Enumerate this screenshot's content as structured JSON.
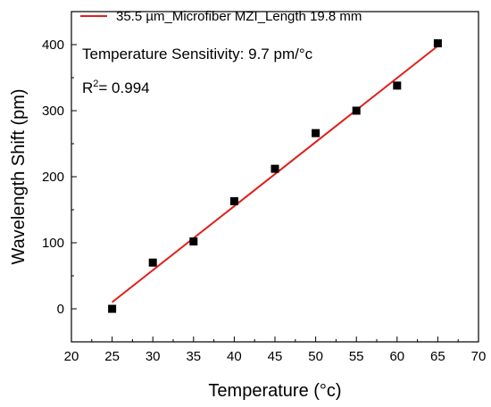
{
  "chart_data": {
    "type": "scatter",
    "xlabel": "Temperature (°c)",
    "ylabel": "Wavelength Shift (pm)",
    "xlim": [
      20,
      70
    ],
    "ylim": [
      -50,
      450
    ],
    "xticks": [
      20,
      25,
      30,
      35,
      40,
      45,
      50,
      55,
      60,
      65,
      70
    ],
    "yticks": [
      0,
      100,
      200,
      300,
      400
    ],
    "grid": false,
    "legend_position": "top-left",
    "series": [
      {
        "name": "35.5 µm_Microfiber MZI_Length 19.8 mm",
        "kind": "points",
        "marker": "square",
        "color": "#000000",
        "x": [
          25,
          30,
          35,
          40,
          45,
          50,
          55,
          60,
          65
        ],
        "y": [
          0,
          70,
          102,
          163,
          212,
          266,
          300,
          338,
          402
        ]
      },
      {
        "kind": "fit-line",
        "color": "#e0201b",
        "x": [
          25,
          65
        ],
        "y": [
          10,
          398
        ]
      }
    ],
    "annotations": {
      "sensitivity": "Temperature Sensitivity: 9.7 pm/°c",
      "r2_prefix": "R",
      "r2_sup": "2",
      "r2_value": "= 0.994"
    }
  }
}
